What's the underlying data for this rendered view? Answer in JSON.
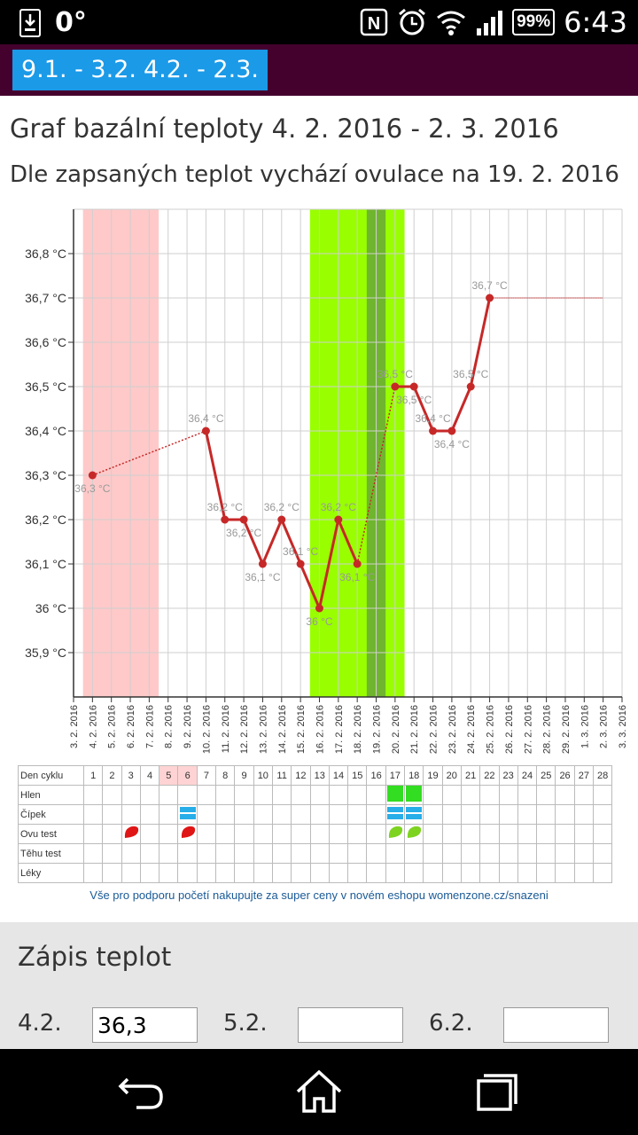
{
  "status_bar": {
    "notification_degree": "0°",
    "nfc_label": "N",
    "battery": "99%",
    "time": "6:43"
  },
  "tabs": [
    {
      "label": "9.1. - 3.2."
    },
    {
      "label": "4.2. - 2.3."
    }
  ],
  "header": {
    "title": "Graf bazální teploty 4. 2. 2016 - 2. 3. 2016",
    "subtitle": "Dle zapsaných teplot vychází ovulace na 19. 2. 2016"
  },
  "colors": {
    "tab": "#1b9ae8",
    "top_bar": "#44012e",
    "period_band": "#ffc9c9",
    "fertile_band": "#99ff00",
    "ovulation_band": "#6fb52e",
    "line": "#c62828"
  },
  "chart_data": {
    "type": "line",
    "title": "Graf bazální teploty 4. 2. 2016 - 2. 3. 2016",
    "x_dates": [
      "3. 2. 2016",
      "4. 2. 2016",
      "5. 2. 2016",
      "6. 2. 2016",
      "7. 2. 2016",
      "8. 2. 2016",
      "9. 2. 2016",
      "10. 2. 2016",
      "11. 2. 2016",
      "12. 2. 2016",
      "13. 2. 2016",
      "14. 2. 2016",
      "15. 2. 2016",
      "16. 2. 2016",
      "17. 2. 2016",
      "18. 2. 2016",
      "19. 2. 2016",
      "20. 2. 2016",
      "21. 2. 2016",
      "22. 2. 2016",
      "23. 2. 2016",
      "24. 2. 2016",
      "25. 2. 2016",
      "26. 2. 2016",
      "27. 2. 2016",
      "28. 2. 2016",
      "29. 2. 2016",
      "1. 3. 2016",
      "2. 3. 2016",
      "3. 3. 2016"
    ],
    "y_ticks": [
      "35,9 °C",
      "36 °C",
      "36,1 °C",
      "36,2 °C",
      "36,3 °C",
      "36,4 °C",
      "36,5 °C",
      "36,6 °C",
      "36,7 °C",
      "36,8 °C"
    ],
    "y_tick_values": [
      35.9,
      36.0,
      36.1,
      36.2,
      36.3,
      36.4,
      36.5,
      36.6,
      36.7,
      36.8
    ],
    "ylim": [
      35.8,
      36.9
    ],
    "points": [
      {
        "x": "4. 2. 2016",
        "y": 36.3,
        "label": "36,3 °C",
        "label_pos": "below"
      },
      {
        "x": "10. 2. 2016",
        "y": 36.4,
        "label": "36,4 °C",
        "label_pos": "above"
      },
      {
        "x": "11. 2. 2016",
        "y": 36.2,
        "label": "36,2 °C",
        "label_pos": "above"
      },
      {
        "x": "12. 2. 2016",
        "y": 36.2,
        "label": "36,2 °C",
        "label_pos": "below"
      },
      {
        "x": "13. 2. 2016",
        "y": 36.1,
        "label": "36,1 °C",
        "label_pos": "below"
      },
      {
        "x": "14. 2. 2016",
        "y": 36.2,
        "label": "36,2 °C",
        "label_pos": "above"
      },
      {
        "x": "15. 2. 2016",
        "y": 36.1,
        "label": "36,1 °C",
        "label_pos": "above"
      },
      {
        "x": "16. 2. 2016",
        "y": 36.0,
        "label": "36 °C",
        "label_pos": "below"
      },
      {
        "x": "17. 2. 2016",
        "y": 36.2,
        "label": "36,2 °C",
        "label_pos": "above"
      },
      {
        "x": "18. 2. 2016",
        "y": 36.1,
        "label": "36,1 °C",
        "label_pos": "below"
      },
      {
        "x": "20. 2. 2016",
        "y": 36.5,
        "label": "36,5 °C",
        "label_pos": "above"
      },
      {
        "x": "21. 2. 2016",
        "y": 36.5,
        "label": "36,5 °C",
        "label_pos": "below"
      },
      {
        "x": "22. 2. 2016",
        "y": 36.4,
        "label": "36,4 °C",
        "label_pos": "above"
      },
      {
        "x": "23. 2. 2016",
        "y": 36.4,
        "label": "36,4 °C",
        "label_pos": "below"
      },
      {
        "x": "24. 2. 2016",
        "y": 36.5,
        "label": "36,5 °C",
        "label_pos": "above"
      },
      {
        "x": "25. 2. 2016",
        "y": 36.7,
        "label": "36,7 °C",
        "label_pos": "above"
      }
    ],
    "projection": {
      "from": "25. 2. 2016",
      "to": "2. 3. 2016",
      "y": 36.7
    },
    "bands": [
      {
        "kind": "period",
        "from": "4. 2. 2016",
        "to": "7. 2. 2016"
      },
      {
        "kind": "fertile",
        "from": "16. 2. 2016",
        "to": "20. 2. 2016"
      },
      {
        "kind": "ovulation",
        "from": "19. 2. 2016",
        "to": "19. 2. 2016"
      }
    ],
    "grid": true
  },
  "cycle_table": {
    "header_label": "Den cyklu",
    "days": [
      "1",
      "2",
      "3",
      "4",
      "5",
      "6",
      "7",
      "8",
      "9",
      "10",
      "11",
      "12",
      "13",
      "14",
      "15",
      "16",
      "17",
      "18",
      "19",
      "20",
      "21",
      "22",
      "23",
      "24",
      "25",
      "26",
      "27",
      "28"
    ],
    "period_days": [
      "5",
      "6"
    ],
    "rows": [
      {
        "label": "Hlen",
        "markers": [
          {
            "day": "17",
            "icon": "mucus-icon"
          },
          {
            "day": "18",
            "icon": "mucus-icon"
          }
        ]
      },
      {
        "label": "Čípek",
        "markers": [
          {
            "day": "6",
            "icon": "cervix-icon"
          },
          {
            "day": "17",
            "icon": "cervix-icon"
          },
          {
            "day": "18",
            "icon": "cervix-icon"
          }
        ]
      },
      {
        "label": "Ovu test",
        "markers": [
          {
            "day": "3",
            "icon": "ovu-negative-icon"
          },
          {
            "day": "6",
            "icon": "ovu-negative-icon"
          },
          {
            "day": "17",
            "icon": "ovu-positive-icon"
          },
          {
            "day": "18",
            "icon": "ovu-positive-icon"
          }
        ]
      },
      {
        "label": "Těhu test",
        "markers": []
      },
      {
        "label": "Léky",
        "markers": []
      }
    ]
  },
  "promo": {
    "text": "Vše pro podporu početí nakupujte za super ceny v novém eshopu womenzone.cz/snazeni"
  },
  "entry": {
    "title": "Zápis teplot",
    "fields": [
      {
        "label": "4.2.",
        "value": "36,3"
      },
      {
        "label": "5.2.",
        "value": ""
      },
      {
        "label": "6.2.",
        "value": ""
      }
    ]
  },
  "nav_bar": {
    "icons": [
      "back-icon",
      "home-icon",
      "recents-icon"
    ]
  }
}
